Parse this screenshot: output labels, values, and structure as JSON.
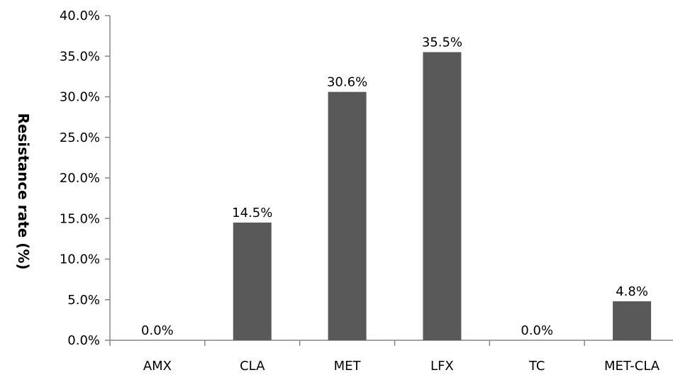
{
  "chart_data": {
    "type": "bar",
    "title": "",
    "xlabel": "",
    "ylabel": "Resistance rate (%)",
    "categories": [
      "AMX",
      "CLA",
      "MET",
      "LFX",
      "TC",
      "MET-CLA"
    ],
    "values": [
      0.0,
      14.5,
      30.6,
      35.5,
      0.0,
      4.8
    ],
    "data_labels": [
      "0.0%",
      "14.5%",
      "30.6%",
      "35.5%",
      "0.0%",
      "4.8%"
    ],
    "ylim": [
      0,
      40
    ],
    "y_ticks": [
      0,
      5,
      10,
      15,
      20,
      25,
      30,
      35,
      40
    ],
    "y_tick_labels": [
      "0.0%",
      "5.0%",
      "10.0%",
      "15.0%",
      "20.0%",
      "25.0%",
      "30.0%",
      "35.0%",
      "40.0%"
    ],
    "grid": false,
    "legend": "none",
    "bar_color": "#595959",
    "axis_color": "#868686"
  }
}
